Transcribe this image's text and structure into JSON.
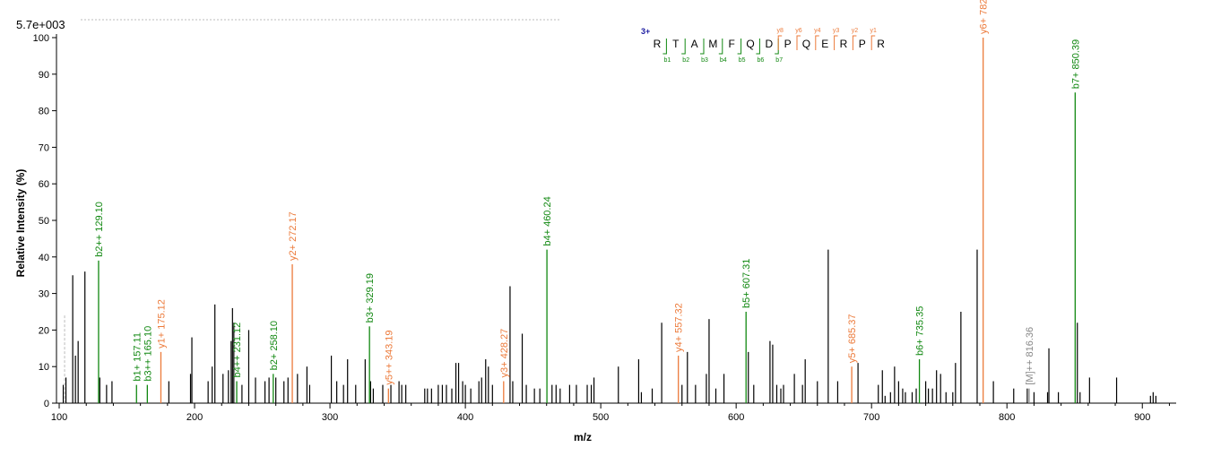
{
  "header": {
    "intensity_scale": "5.7e+003"
  },
  "colors": {
    "b_ion": "#118811",
    "y_ion": "#ec7a3a",
    "other": "#888888",
    "unlabeled": "#000000"
  },
  "chart_data": {
    "type": "bar",
    "xlabel": "m/z",
    "ylabel": "Relative   Intensity (%)",
    "xlim": [
      98,
      925
    ],
    "ylim": [
      0,
      100
    ],
    "x_ticks": [
      100,
      200,
      300,
      400,
      500,
      600,
      700,
      800,
      900
    ],
    "y_ticks": [
      0,
      10,
      20,
      30,
      40,
      50,
      60,
      70,
      80,
      90,
      100
    ],
    "peptide": {
      "charge": "3+",
      "residues": [
        "R",
        "T",
        "A",
        "M",
        "F",
        "Q",
        "D",
        "P",
        "Q",
        "E",
        "R",
        "P",
        "R"
      ],
      "b_labels": [
        "b1",
        "b2",
        "b3",
        "b4",
        "b5",
        "b6",
        "b7"
      ],
      "y_labels": [
        "y8",
        "y6",
        "y4",
        "y3",
        "y2",
        "y1"
      ]
    },
    "labeled_peaks": [
      {
        "mz": 129.1,
        "intensity": 39,
        "label": "b2++ 129.10",
        "type": "b"
      },
      {
        "mz": 157.11,
        "intensity": 5,
        "label": "b1+ 157.11",
        "type": "b"
      },
      {
        "mz": 165.1,
        "intensity": 5,
        "label": "b3++ 165.10",
        "type": "b"
      },
      {
        "mz": 175.12,
        "intensity": 14,
        "label": "y1+ 175.12",
        "type": "y"
      },
      {
        "mz": 231.12,
        "intensity": 6,
        "label": "b4++ 231.12",
        "type": "b"
      },
      {
        "mz": 258.1,
        "intensity": 8,
        "label": "b2+ 258.10",
        "type": "b"
      },
      {
        "mz": 272.17,
        "intensity": 38,
        "label": "y2+ 272.17",
        "type": "y"
      },
      {
        "mz": 329.19,
        "intensity": 21,
        "label": "b3+ 329.19",
        "type": "b"
      },
      {
        "mz": 343.19,
        "intensity": 4,
        "label": "y5++ 343.19",
        "type": "y"
      },
      {
        "mz": 428.27,
        "intensity": 6,
        "label": "y3+ 428.27",
        "type": "y"
      },
      {
        "mz": 460.24,
        "intensity": 42,
        "label": "b4+ 460.24",
        "type": "b"
      },
      {
        "mz": 557.32,
        "intensity": 13,
        "label": "y4+ 557.32",
        "type": "y"
      },
      {
        "mz": 607.31,
        "intensity": 25,
        "label": "b5+ 607.31",
        "type": "b"
      },
      {
        "mz": 685.37,
        "intensity": 10,
        "label": "y5+ 685.37",
        "type": "y"
      },
      {
        "mz": 735.35,
        "intensity": 12,
        "label": "b6+ 735.35",
        "type": "b"
      },
      {
        "mz": 782.43,
        "intensity": 100,
        "label": "y6+ 782.43",
        "type": "y"
      },
      {
        "mz": 816.36,
        "intensity": 4,
        "label": "[M]++ 816.36",
        "type": "other"
      },
      {
        "mz": 850.39,
        "intensity": 85,
        "label": "b7+ 850.39",
        "type": "b"
      }
    ],
    "unlabeled_peaks": [
      [
        103,
        5
      ],
      [
        105,
        7
      ],
      [
        110,
        35
      ],
      [
        112,
        13
      ],
      [
        114,
        17
      ],
      [
        119,
        36
      ],
      [
        130,
        7
      ],
      [
        135,
        5
      ],
      [
        139,
        6
      ],
      [
        181,
        6
      ],
      [
        197,
        8
      ],
      [
        198,
        18
      ],
      [
        210,
        6
      ],
      [
        213,
        10
      ],
      [
        215,
        27
      ],
      [
        221,
        8
      ],
      [
        225,
        9
      ],
      [
        227,
        17
      ],
      [
        228,
        26
      ],
      [
        229,
        22
      ],
      [
        235,
        5
      ],
      [
        240,
        20
      ],
      [
        245,
        7
      ],
      [
        252,
        6
      ],
      [
        255,
        7
      ],
      [
        260,
        7
      ],
      [
        266,
        6
      ],
      [
        269,
        7
      ],
      [
        276,
        8
      ],
      [
        283,
        10
      ],
      [
        285,
        5
      ],
      [
        301,
        13
      ],
      [
        305,
        6
      ],
      [
        310,
        5
      ],
      [
        313,
        12
      ],
      [
        319,
        5
      ],
      [
        326,
        12
      ],
      [
        330,
        6
      ],
      [
        332,
        4
      ],
      [
        339,
        5
      ],
      [
        345,
        5
      ],
      [
        351,
        6
      ],
      [
        353,
        5
      ],
      [
        356,
        5
      ],
      [
        370,
        4
      ],
      [
        372,
        4
      ],
      [
        375,
        4
      ],
      [
        380,
        5
      ],
      [
        383,
        5
      ],
      [
        386,
        5
      ],
      [
        390,
        4
      ],
      [
        393,
        11
      ],
      [
        395,
        11
      ],
      [
        398,
        6
      ],
      [
        400,
        5
      ],
      [
        404,
        4
      ],
      [
        410,
        6
      ],
      [
        412,
        7
      ],
      [
        415,
        12
      ],
      [
        417,
        10
      ],
      [
        420,
        5
      ],
      [
        433,
        32
      ],
      [
        435,
        6
      ],
      [
        442,
        19
      ],
      [
        445,
        5
      ],
      [
        451,
        4
      ],
      [
        455,
        4
      ],
      [
        464,
        5
      ],
      [
        467,
        5
      ],
      [
        470,
        4
      ],
      [
        477,
        5
      ],
      [
        482,
        5
      ],
      [
        490,
        5
      ],
      [
        493,
        5
      ],
      [
        495,
        7
      ],
      [
        513,
        10
      ],
      [
        528,
        12
      ],
      [
        530,
        3
      ],
      [
        538,
        4
      ],
      [
        545,
        22
      ],
      [
        560,
        5
      ],
      [
        564,
        14
      ],
      [
        570,
        5
      ],
      [
        578,
        8
      ],
      [
        580,
        23
      ],
      [
        585,
        4
      ],
      [
        591,
        8
      ],
      [
        609,
        14
      ],
      [
        613,
        5
      ],
      [
        625,
        17
      ],
      [
        627,
        16
      ],
      [
        630,
        5
      ],
      [
        633,
        4
      ],
      [
        635,
        5
      ],
      [
        643,
        8
      ],
      [
        649,
        5
      ],
      [
        651,
        12
      ],
      [
        660,
        6
      ],
      [
        668,
        42
      ],
      [
        675,
        6
      ],
      [
        690,
        11
      ],
      [
        705,
        5
      ],
      [
        708,
        9
      ],
      [
        710,
        2
      ],
      [
        714,
        3
      ],
      [
        717,
        10
      ],
      [
        720,
        6
      ],
      [
        723,
        4
      ],
      [
        725,
        3
      ],
      [
        730,
        3
      ],
      [
        733,
        4
      ],
      [
        740,
        6
      ],
      [
        742,
        4
      ],
      [
        745,
        4
      ],
      [
        748,
        9
      ],
      [
        751,
        8
      ],
      [
        755,
        3
      ],
      [
        760,
        3
      ],
      [
        762,
        11
      ],
      [
        766,
        25
      ],
      [
        778,
        42
      ],
      [
        790,
        6
      ],
      [
        805,
        4
      ],
      [
        815,
        4
      ],
      [
        820,
        3
      ],
      [
        830,
        3
      ],
      [
        831,
        15
      ],
      [
        838,
        3
      ],
      [
        852,
        22
      ],
      [
        854,
        3
      ],
      [
        861,
        7
      ],
      [
        881,
        7
      ],
      [
        906,
        2
      ],
      [
        908,
        3
      ],
      [
        910,
        2
      ]
    ]
  }
}
